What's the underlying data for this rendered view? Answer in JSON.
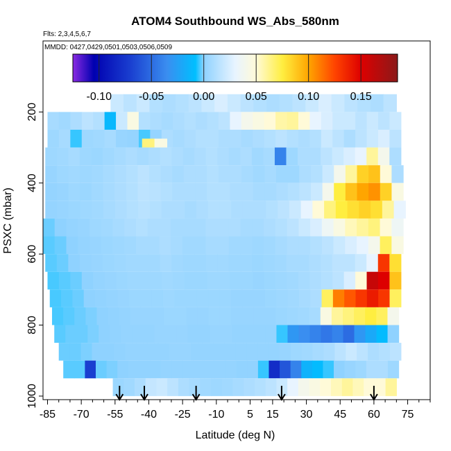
{
  "chart_data": {
    "type": "heatmap",
    "title": "ATOM4 Southbound WS_Abs_580nm",
    "subtitle_flights": "Flts: 2,3,4,5,6,7",
    "subtitle_dates": "MMDD: 0427,0429,0501,0503,0506,0509",
    "xlabel": "Latitude (deg N)",
    "ylabel": "PSXC (mbar)",
    "xlim": [
      -87,
      85
    ],
    "ylim": [
      1010,
      0
    ],
    "x_major_ticks": [
      -85,
      -70,
      -55,
      -40,
      -25,
      -10,
      5,
      15,
      30,
      45,
      60,
      75
    ],
    "x_tick_labels": [
      "-85",
      "-70",
      "-55",
      "-40",
      "-25",
      "-10",
      "5",
      "15",
      "30",
      "45",
      "60",
      "75"
    ],
    "x_minor_ticks": [
      -80,
      -75,
      -65,
      -60,
      -50,
      -45,
      -35,
      -30,
      -20,
      -15,
      -5,
      0,
      10,
      20,
      25,
      35,
      40,
      50,
      55,
      65,
      70,
      80,
      85
    ],
    "y_ticks": [
      200,
      400,
      600,
      800,
      1000
    ],
    "y_tick_labels": [
      "200",
      "400",
      "600",
      "800",
      "1000"
    ],
    "colorbar": {
      "min": -0.125,
      "max": 0.185,
      "ticks": [
        -0.1,
        -0.05,
        0.0,
        0.05,
        0.1,
        0.15
      ],
      "tick_labels": [
        "-0.10",
        "-0.05",
        "0.00",
        "0.05",
        "0.10",
        "0.15"
      ],
      "stops": [
        {
          "v": -0.125,
          "c": "#8a2be2"
        },
        {
          "v": -0.105,
          "c": "#0000b0"
        },
        {
          "v": -0.07,
          "c": "#1a3fd0"
        },
        {
          "v": -0.035,
          "c": "#3a8ef0"
        },
        {
          "v": -0.008,
          "c": "#00bfff"
        },
        {
          "v": 0.0,
          "c": "#8fd2ff"
        },
        {
          "v": 0.03,
          "c": "#e8f4ff"
        },
        {
          "v": 0.05,
          "c": "#fffad8"
        },
        {
          "v": 0.075,
          "c": "#ffee40"
        },
        {
          "v": 0.1,
          "c": "#ffa500"
        },
        {
          "v": 0.125,
          "c": "#ff4400"
        },
        {
          "v": 0.15,
          "c": "#dd0000"
        },
        {
          "v": 0.185,
          "c": "#8b1a1a"
        }
      ]
    },
    "arrow_latitudes": [
      -53,
      -42,
      -19,
      19,
      60
    ],
    "pressure_levels": [
      175,
      225,
      275,
      300,
      325,
      375,
      425,
      475,
      525,
      575,
      625,
      675,
      725,
      775,
      825,
      875,
      925,
      975
    ],
    "latitude_edges": [
      -85,
      -80,
      -75,
      -70,
      -65,
      -60,
      -55,
      -50,
      -45,
      -40,
      -35,
      -30,
      -25,
      -20,
      -15,
      -10,
      -5,
      0,
      5,
      10,
      15,
      20,
      25,
      30,
      35,
      40,
      45,
      50,
      55,
      60,
      65,
      70
    ],
    "rows": [
      {
        "p0": 150,
        "p1": 200,
        "lat0": -57,
        "lat1": 70,
        "values": [
          0.02,
          0.015,
          0.02,
          0.012,
          0.01,
          0.012,
          0.015,
          0.02,
          0.025,
          0.02,
          0.015,
          0.012,
          0.01,
          0.012,
          0.015,
          0.02,
          0.025,
          0.02,
          0.015,
          0.012,
          0.01,
          0.015
        ]
      },
      {
        "p0": 200,
        "p1": 250,
        "lat0": -85,
        "lat1": 72,
        "values": [
          0.008,
          0.006,
          0.01,
          0.015,
          0.012,
          -0.012,
          0.02,
          0.045,
          0.012,
          0.01,
          0.008,
          0.01,
          0.012,
          0.01,
          0.012,
          0.015,
          0.03,
          0.04,
          0.045,
          0.05,
          0.058,
          0.06,
          0.05,
          0.03,
          0.025,
          0.02,
          0.02,
          0.015,
          0.02,
          0.015,
          0.02
        ]
      },
      {
        "p0": 250,
        "p1": 300,
        "lat0": -85,
        "lat1": 72,
        "values": [
          0.005,
          0.008,
          -0.005,
          0.005,
          0.006,
          0.008,
          0.003,
          0.002,
          -0.004,
          0.002,
          0.01,
          0.008,
          0.01,
          0.012,
          0.012,
          0.01,
          0.01,
          0.008,
          0.01,
          0.012,
          0.015,
          0.012,
          0.01,
          0.012,
          0.02,
          0.015,
          0.01,
          0.015,
          0.02,
          0.025,
          0.015
        ]
      },
      {
        "p0": 275,
        "p1": 300,
        "lat0": -43,
        "lat1": -32,
        "values": [
          0.065,
          0.045
        ]
      },
      {
        "p0": 300,
        "p1": 350,
        "lat0": -86,
        "lat1": 72,
        "values": [
          0.005,
          0.006,
          0.008,
          0.005,
          0.004,
          0.006,
          0.008,
          0.01,
          0.008,
          0.01,
          0.012,
          0.01,
          0.008,
          0.01,
          0.012,
          0.01,
          0.008,
          0.01,
          0.006,
          0.008,
          -0.04,
          0.005,
          0.01,
          0.01,
          0.015,
          0.02,
          0.025,
          0.03,
          0.06,
          0.04,
          0.01
        ]
      },
      {
        "p0": 350,
        "p1": 400,
        "lat0": -86,
        "lat1": 73,
        "values": [
          0.003,
          0.005,
          0.006,
          0.005,
          0.006,
          0.008,
          0.01,
          0.012,
          0.015,
          0.012,
          0.01,
          0.008,
          0.01,
          0.01,
          0.012,
          0.01,
          0.01,
          0.008,
          0.006,
          0.008,
          0.005,
          0.005,
          0.01,
          0.012,
          0.02,
          0.04,
          0.06,
          0.085,
          0.09,
          0.05,
          0.01
        ]
      },
      {
        "p0": 400,
        "p1": 450,
        "lat0": -86,
        "lat1": 73,
        "values": [
          0.002,
          0.003,
          0.005,
          0.004,
          0.006,
          0.008,
          0.01,
          0.012,
          0.015,
          0.014,
          0.012,
          0.01,
          0.01,
          0.01,
          0.012,
          0.012,
          0.01,
          0.01,
          0.008,
          0.008,
          0.01,
          0.012,
          0.015,
          0.02,
          0.04,
          0.075,
          0.09,
          0.1,
          0.105,
          0.085,
          0.045
        ]
      },
      {
        "p0": 450,
        "p1": 500,
        "lat0": -86,
        "lat1": 74,
        "values": [
          0.002,
          0.003,
          0.004,
          0.005,
          0.006,
          0.008,
          0.01,
          0.012,
          0.014,
          0.012,
          0.01,
          0.01,
          0.008,
          0.01,
          0.012,
          0.012,
          0.01,
          0.01,
          0.01,
          0.012,
          0.015,
          0.02,
          0.03,
          0.05,
          0.065,
          0.075,
          0.08,
          0.085,
          0.08,
          0.06,
          0.03
        ]
      },
      {
        "p0": 500,
        "p1": 550,
        "lat0": -87,
        "lat1": 73,
        "values": [
          -0.002,
          0.0,
          0.002,
          0.003,
          0.005,
          0.006,
          0.008,
          0.01,
          0.012,
          0.01,
          0.01,
          0.008,
          0.008,
          0.008,
          0.01,
          0.01,
          0.01,
          0.008,
          0.008,
          0.01,
          0.012,
          0.015,
          0.02,
          0.025,
          0.035,
          0.045,
          0.055,
          0.06,
          0.065,
          0.05,
          0.035
        ]
      },
      {
        "p0": 550,
        "p1": 600,
        "lat0": -87,
        "lat1": 73,
        "values": [
          -0.003,
          -0.002,
          0.0,
          0.002,
          0.003,
          0.004,
          0.005,
          0.006,
          0.008,
          0.008,
          0.01,
          0.008,
          0.006,
          0.006,
          0.008,
          0.008,
          0.006,
          0.006,
          0.005,
          0.006,
          0.008,
          0.01,
          0.01,
          0.012,
          0.015,
          0.02,
          0.025,
          0.03,
          0.04,
          0.07,
          0.045
        ]
      },
      {
        "p0": 600,
        "p1": 650,
        "lat0": -86,
        "lat1": 72,
        "values": [
          -0.003,
          -0.002,
          0.0,
          0.002,
          0.003,
          0.004,
          0.005,
          0.006,
          0.006,
          0.006,
          0.008,
          0.006,
          0.005,
          0.005,
          0.006,
          0.006,
          0.005,
          0.005,
          0.004,
          0.005,
          0.006,
          0.008,
          0.008,
          0.01,
          0.012,
          0.015,
          0.015,
          0.02,
          0.03,
          0.13,
          0.08
        ]
      },
      {
        "p0": 650,
        "p1": 700,
        "lat0": -85,
        "lat1": 72,
        "values": [
          -0.004,
          -0.003,
          -0.002,
          0.0,
          0.002,
          0.003,
          0.004,
          0.005,
          0.005,
          0.005,
          0.006,
          0.005,
          0.004,
          0.004,
          0.005,
          0.005,
          0.004,
          0.004,
          0.003,
          0.004,
          0.005,
          0.006,
          0.008,
          0.01,
          0.012,
          0.015,
          0.025,
          0.05,
          0.16,
          0.15,
          0.09
        ]
      },
      {
        "p0": 700,
        "p1": 750,
        "lat0": -84,
        "lat1": 72,
        "values": [
          -0.004,
          -0.003,
          -0.002,
          0.0,
          0.001,
          0.002,
          0.003,
          0.004,
          0.004,
          0.004,
          0.005,
          0.004,
          0.004,
          0.004,
          0.004,
          0.004,
          0.003,
          0.003,
          0.003,
          0.004,
          0.005,
          0.006,
          0.008,
          0.01,
          0.07,
          0.11,
          0.12,
          0.13,
          0.14,
          0.13,
          0.07
        ]
      },
      {
        "p0": 750,
        "p1": 800,
        "lat0": -83,
        "lat1": 71,
        "values": [
          -0.004,
          -0.003,
          -0.002,
          -0.001,
          0.0,
          0.001,
          0.002,
          0.003,
          0.003,
          0.003,
          0.004,
          0.004,
          0.003,
          0.003,
          0.004,
          0.004,
          0.003,
          0.003,
          0.003,
          0.003,
          0.004,
          0.005,
          0.006,
          0.008,
          0.045,
          0.06,
          0.065,
          0.07,
          0.075,
          0.07,
          0.04
        ]
      },
      {
        "p0": 800,
        "p1": 850,
        "lat0": -82,
        "lat1": 71,
        "values": [
          -0.003,
          -0.002,
          -0.002,
          -0.001,
          0.0,
          0.001,
          0.002,
          0.002,
          0.002,
          0.003,
          0.003,
          0.003,
          0.002,
          0.002,
          0.003,
          0.003,
          0.002,
          0.002,
          0.002,
          0.002,
          -0.005,
          -0.03,
          -0.035,
          -0.04,
          -0.045,
          -0.04,
          -0.05,
          -0.03,
          -0.02,
          -0.01,
          0.0
        ]
      },
      {
        "p0": 850,
        "p1": 900,
        "lat0": -80,
        "lat1": 72,
        "values": [
          -0.002,
          -0.002,
          -0.001,
          0.0,
          0.0,
          0.001,
          0.002,
          0.002,
          0.002,
          0.002,
          0.003,
          0.003,
          0.002,
          0.002,
          0.002,
          0.002,
          0.002,
          0.002,
          0.002,
          0.002,
          0.003,
          0.005,
          0.006,
          0.008,
          0.01,
          0.015,
          0.02,
          0.015,
          0.01,
          0.012,
          0.015
        ]
      },
      {
        "p0": 900,
        "p1": 950,
        "lat0": -78,
        "lat1": 71,
        "values": [
          -0.003,
          -0.003,
          -0.07,
          -0.002,
          -0.001,
          0.0,
          0.001,
          0.001,
          0.001,
          0.002,
          0.002,
          0.002,
          0.002,
          0.002,
          0.002,
          0.002,
          0.001,
          0.001,
          -0.005,
          -0.08,
          -0.06,
          -0.04,
          -0.015,
          -0.01,
          -0.005,
          0.0,
          0.003,
          0.005,
          0.01,
          0.01,
          0.005
        ]
      },
      {
        "p0": 950,
        "p1": 1000,
        "lat0": -56,
        "lat1": 70,
        "values": [
          0.004,
          0.006,
          0.01,
          0.018,
          0.02,
          0.015,
          0.01,
          0.008,
          0.006,
          0.005,
          0.006,
          0.008,
          0.01,
          0.012,
          0.015,
          0.02,
          0.03,
          0.04,
          0.045,
          0.05,
          0.055,
          0.06,
          0.055,
          0.05,
          0.05,
          0.06
        ]
      }
    ]
  }
}
